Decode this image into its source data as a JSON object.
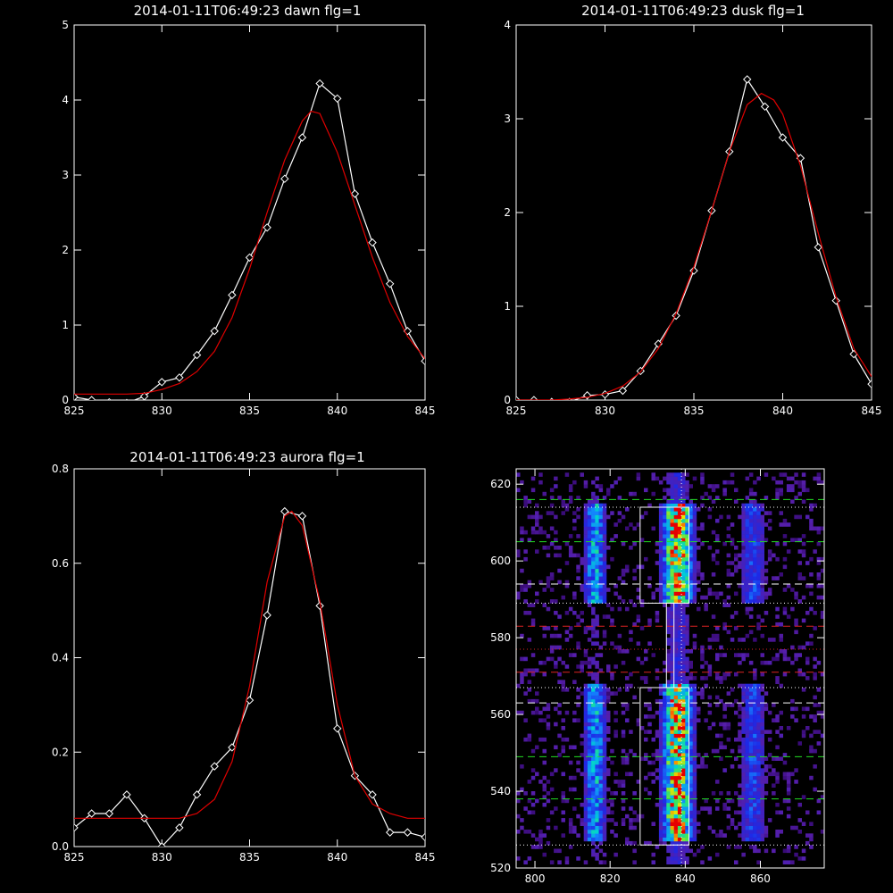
{
  "colors": {
    "background": "#000000",
    "axes": "#ffffff",
    "data_line": "#ffffff",
    "fit_line": "#e00000",
    "box": "#ffffff",
    "dash_green": "#22dd22",
    "dash_red": "#dd2222",
    "dash_white": "#ffffff"
  },
  "chart_data": [
    {
      "type": "line",
      "title": "2014-01-11T06:49:23 dawn flg=1",
      "xlabel": "",
      "ylabel": "",
      "xlim": [
        825,
        845
      ],
      "ylim": [
        0,
        5
      ],
      "x_ticks": [
        825,
        830,
        835,
        840,
        845
      ],
      "y_ticks": [
        0,
        1,
        2,
        3,
        4,
        5
      ],
      "grid": false,
      "series": [
        {
          "style": "data",
          "marker": "diamond",
          "x": [
            825,
            826,
            827,
            828,
            829,
            830,
            831,
            832,
            833,
            834,
            835,
            836,
            837,
            838,
            839,
            840,
            841,
            842,
            843,
            844,
            845
          ],
          "y": [
            0.04,
            0.0,
            -0.03,
            -0.04,
            0.05,
            0.24,
            0.3,
            0.6,
            0.92,
            1.4,
            1.9,
            2.3,
            2.95,
            3.5,
            4.22,
            4.02,
            2.75,
            2.1,
            1.55,
            0.92,
            0.52
          ]
        },
        {
          "style": "fit",
          "x": [
            825,
            826,
            827,
            828,
            829,
            830,
            831,
            832,
            833,
            834,
            835,
            836,
            837,
            838,
            838.5,
            839,
            840,
            841,
            842,
            843,
            844,
            845
          ],
          "y": [
            0.08,
            0.08,
            0.08,
            0.08,
            0.09,
            0.14,
            0.22,
            0.38,
            0.65,
            1.1,
            1.75,
            2.5,
            3.2,
            3.72,
            3.85,
            3.82,
            3.3,
            2.6,
            1.9,
            1.3,
            0.85,
            0.55
          ]
        }
      ]
    },
    {
      "type": "line",
      "title": "2014-01-11T06:49:23 dusk flg=1",
      "xlabel": "",
      "ylabel": "",
      "xlim": [
        825,
        845
      ],
      "ylim": [
        0,
        4
      ],
      "x_ticks": [
        825,
        830,
        835,
        840,
        845
      ],
      "y_ticks": [
        0,
        1,
        2,
        3,
        4
      ],
      "grid": false,
      "series": [
        {
          "style": "data",
          "marker": "diamond",
          "x": [
            825,
            826,
            827,
            828,
            829,
            830,
            831,
            832,
            833,
            834,
            835,
            836,
            837,
            838,
            839,
            840,
            841,
            842,
            843,
            844,
            845
          ],
          "y": [
            0.0,
            0.0,
            -0.02,
            -0.02,
            0.05,
            0.06,
            0.1,
            0.31,
            0.6,
            0.9,
            1.38,
            2.02,
            2.65,
            3.42,
            3.13,
            2.8,
            2.58,
            1.63,
            1.06,
            0.49,
            0.17
          ]
        },
        {
          "style": "fit",
          "x": [
            825,
            826,
            827,
            828,
            829,
            830,
            831,
            832,
            833,
            834,
            835,
            836,
            837,
            838,
            838.8,
            839.5,
            840,
            841,
            842,
            843,
            844,
            845
          ],
          "y": [
            0.0,
            0.0,
            0.0,
            0.01,
            0.03,
            0.07,
            0.15,
            0.3,
            0.55,
            0.92,
            1.42,
            2.02,
            2.65,
            3.15,
            3.27,
            3.2,
            3.05,
            2.5,
            1.78,
            1.1,
            0.55,
            0.25
          ]
        }
      ]
    },
    {
      "type": "line",
      "title": "2014-01-11T06:49:23 aurora flg=1",
      "xlabel": "",
      "ylabel": "",
      "xlim": [
        825,
        845
      ],
      "ylim": [
        0,
        0.8
      ],
      "x_ticks": [
        825,
        830,
        835,
        840,
        845
      ],
      "y_ticks": [
        0.0,
        0.2,
        0.4,
        0.6,
        0.8
      ],
      "y_tick_labels": [
        "0.0",
        "0.2",
        "0.4",
        "0.6",
        "0.8"
      ],
      "grid": false,
      "series": [
        {
          "style": "data",
          "marker": "diamond",
          "x": [
            825,
            826,
            827,
            828,
            829,
            830,
            831,
            832,
            833,
            834,
            835,
            836,
            837,
            838,
            839,
            840,
            841,
            842,
            843,
            844,
            845
          ],
          "y": [
            0.04,
            0.07,
            0.07,
            0.11,
            0.06,
            0.0,
            0.04,
            0.11,
            0.17,
            0.21,
            0.31,
            0.49,
            0.71,
            0.7,
            0.51,
            0.25,
            0.15,
            0.11,
            0.03,
            0.03,
            0.02
          ]
        },
        {
          "style": "fit",
          "x": [
            825,
            826,
            827,
            828,
            829,
            830,
            831,
            832,
            833,
            834,
            835,
            836,
            837,
            837.4,
            838,
            839,
            840,
            841,
            842,
            843,
            844,
            845
          ],
          "y": [
            0.06,
            0.06,
            0.06,
            0.06,
            0.06,
            0.06,
            0.06,
            0.07,
            0.1,
            0.18,
            0.34,
            0.56,
            0.7,
            0.71,
            0.68,
            0.52,
            0.3,
            0.15,
            0.09,
            0.07,
            0.06,
            0.06
          ]
        }
      ]
    },
    {
      "type": "heatmap",
      "title": "",
      "xlabel": "",
      "ylabel": "",
      "xlim": [
        795,
        877
      ],
      "ylim": [
        520,
        624
      ],
      "x_ticks": [
        800,
        820,
        840,
        860
      ],
      "y_ticks": [
        520,
        540,
        560,
        580,
        600,
        620
      ],
      "grid": false,
      "colormap": "rainbow",
      "emission_columns": [
        {
          "x_center": 816,
          "width": 6,
          "intensity": 0.55
        },
        {
          "x_center": 838,
          "width": 8,
          "intensity": 1.0
        },
        {
          "x_center": 858,
          "width": 7,
          "intensity": 0.35
        }
      ],
      "vertical_dotted_line_x": 839,
      "boxes": [
        {
          "x": [
            828,
            841
          ],
          "y": [
            589,
            614
          ]
        },
        {
          "x": [
            835,
            837
          ],
          "y": [
            567,
            589
          ]
        },
        {
          "x": [
            828,
            841
          ],
          "y": [
            526,
            567
          ]
        }
      ],
      "horizontal_lines": [
        {
          "y": 616,
          "style": "dashed",
          "color": "green"
        },
        {
          "y": 614,
          "style": "dotted",
          "color": "white"
        },
        {
          "y": 605,
          "style": "dashed",
          "color": "green"
        },
        {
          "y": 594,
          "style": "dashed",
          "color": "white"
        },
        {
          "y": 589,
          "style": "dotted",
          "color": "white"
        },
        {
          "y": 583,
          "style": "dashed",
          "color": "red"
        },
        {
          "y": 577,
          "style": "dotted",
          "color": "red"
        },
        {
          "y": 571,
          "style": "dashed",
          "color": "red"
        },
        {
          "y": 567,
          "style": "dotted",
          "color": "white"
        },
        {
          "y": 563,
          "style": "dashed",
          "color": "white"
        },
        {
          "y": 549,
          "style": "dashed",
          "color": "green"
        },
        {
          "y": 538,
          "style": "dashed",
          "color": "green"
        },
        {
          "y": 526,
          "style": "dotted",
          "color": "white"
        }
      ]
    }
  ]
}
